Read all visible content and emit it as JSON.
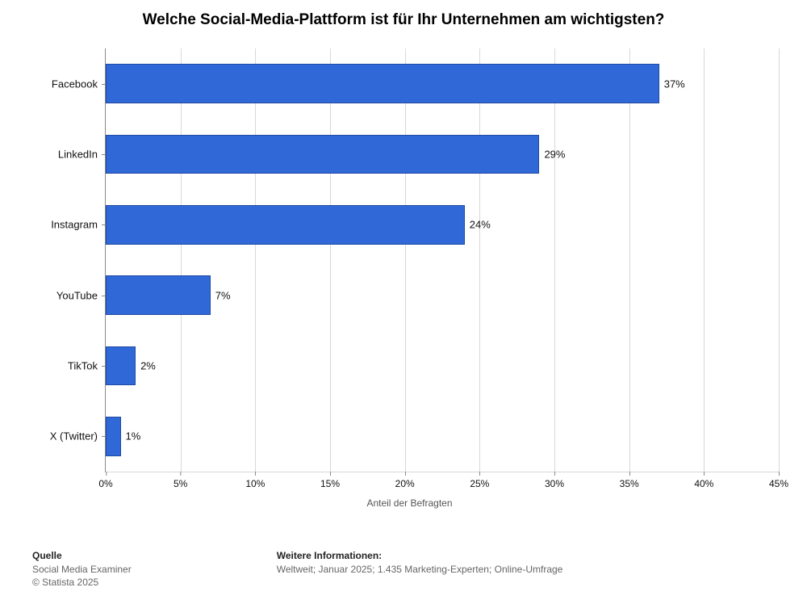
{
  "title": "Welche Social-Media-Plattform ist für Ihr Unternehmen am wichtigsten?",
  "title_fontsize": 19,
  "title_color": "#000000",
  "chart": {
    "type": "bar-horizontal",
    "categories": [
      "Facebook",
      "LinkedIn",
      "Instagram",
      "YouTube",
      "TikTok",
      "X (Twitter)"
    ],
    "values": [
      37,
      29,
      24,
      7,
      2,
      1
    ],
    "value_suffix": "%",
    "bar_color": "#3068d8",
    "bar_border_color": "#1f4aa3",
    "bg_color": "#ffffff",
    "grid_color": "#d8d8d8",
    "axis_color": "#8a8a8a",
    "xmin": 0,
    "xmax": 45,
    "xtick_step": 5,
    "xticks": [
      "0%",
      "5%",
      "10%",
      "15%",
      "20%",
      "25%",
      "30%",
      "35%",
      "40%",
      "45%"
    ],
    "xlabel": "Anteil der Befragten",
    "xlabel_fontsize": 12,
    "xlabel_color": "#555555",
    "tick_fontsize": 12,
    "cat_fontsize": 13,
    "bar_fill_ratio": 0.56
  },
  "footer": {
    "left": {
      "head": "Quelle",
      "line1": "Social Media Examiner",
      "line2": "© Statista 2025"
    },
    "right": {
      "head": "Weitere Informationen:",
      "line1": "Weltweit; Januar 2025; 1.435 Marketing-Experten; Online-Umfrage"
    }
  }
}
